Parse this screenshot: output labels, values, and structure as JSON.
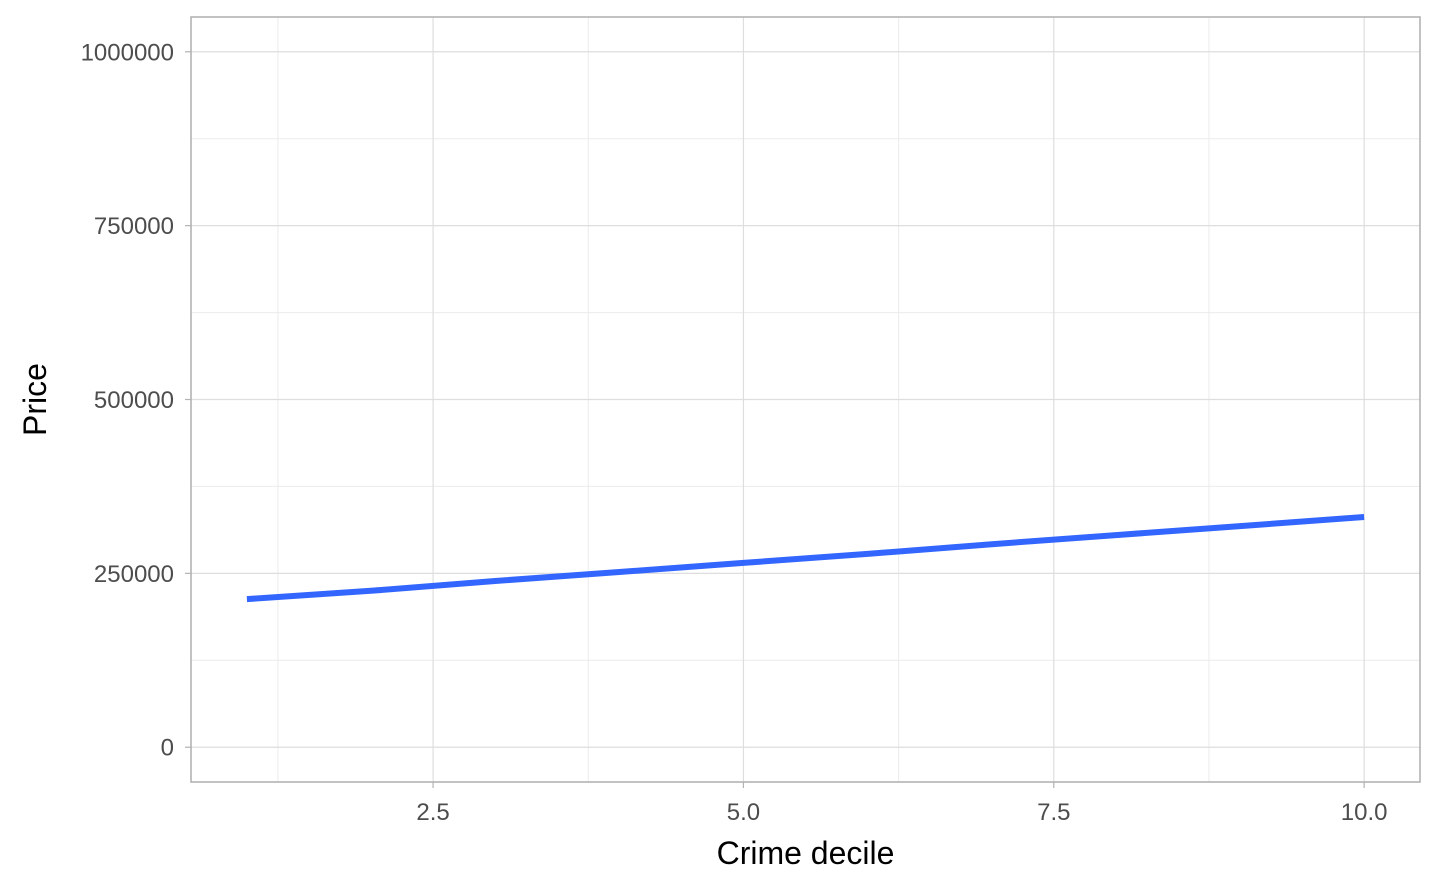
{
  "chart_data": {
    "type": "line",
    "title": "",
    "xlabel": "Crime decile",
    "ylabel": "Price",
    "xlim": [
      0.55,
      10.45
    ],
    "ylim": [
      -50000,
      1050000
    ],
    "x_ticks": [
      2.5,
      5.0,
      7.5,
      10.0
    ],
    "x_tick_labels": [
      "2.5",
      "5.0",
      "7.5",
      "10.0"
    ],
    "x_minor_ticks": [
      1.25,
      3.75,
      6.25,
      8.75
    ],
    "y_ticks": [
      0,
      250000,
      500000,
      750000,
      1000000
    ],
    "y_tick_labels": [
      "0",
      "250000",
      "500000",
      "750000",
      "1000000"
    ],
    "y_minor_ticks": [
      125000,
      375000,
      625000,
      875000
    ],
    "grid": true,
    "series": [
      {
        "color": "#3366ff",
        "x": [
          1,
          2,
          3,
          4,
          5,
          6,
          7,
          8,
          9,
          10
        ],
        "y": [
          213000,
          225000,
          239000,
          252000,
          265000,
          278000,
          292000,
          305000,
          318000,
          331000
        ]
      }
    ]
  }
}
